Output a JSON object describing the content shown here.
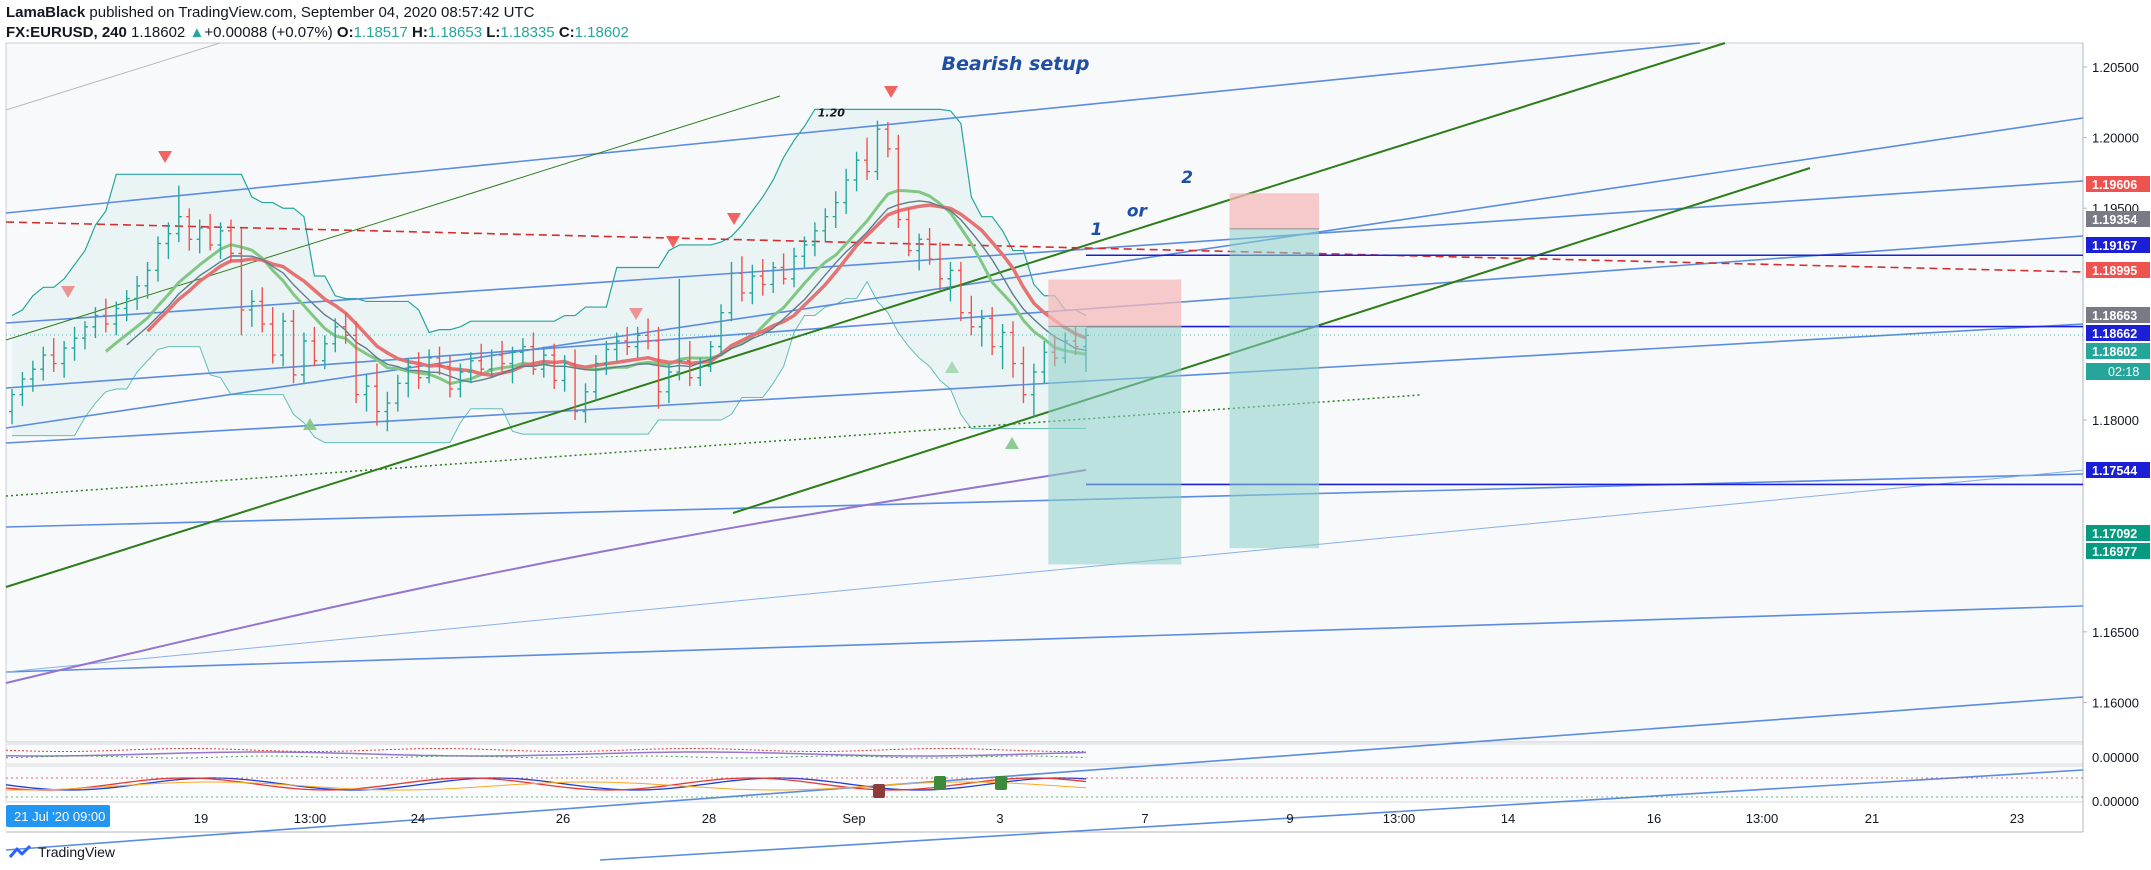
{
  "header": {
    "author": "LamaBlack",
    "published_text": "published on TradingView.com, September 04, 2020 08:57:42 UTC",
    "symbol": "FX:EURUSD, 240",
    "last": "1.18602",
    "change_arrow": "▲",
    "change": "+0.00088 (+0.07%)",
    "o_label": "O:",
    "o": "1.18517",
    "h_label": "H:",
    "h": "1.18653",
    "l_label": "L:",
    "l": "1.18335",
    "c_label": "C:",
    "c": "1.18602"
  },
  "footer": {
    "brand": "TradingView",
    "brand_icon": "tradingview-logo-icon"
  },
  "colors": {
    "up": "#26a69a",
    "down": "#ef5350",
    "channel": "#5b8ce0",
    "trend": "#2e7d1b",
    "level": "#1b1fd6",
    "resistance": "#d32f2f",
    "support": "#2e7d1b",
    "ma_fast": "#e57373",
    "ma_slow": "#81c784",
    "ma_long": "#9575cd",
    "annotation": "#1e4fa0",
    "target": "#8ccfc9",
    "stop": "#f6b9b9"
  },
  "chart_data": {
    "type": "candlestick",
    "title": "",
    "annotations": [
      {
        "text": "Bearish setup",
        "x": "Sep 2 12:00",
        "y": 1.2048
      },
      {
        "text": "1",
        "x": "Sep 5 12:00",
        "y": 1.1931
      },
      {
        "text": "or",
        "x": "Sep 6 12:00",
        "y": 1.1944
      },
      {
        "text": "2",
        "x": "Sep 7 12:00",
        "y": 1.1968
      },
      {
        "text": "1.20",
        "x": "Aug 31 00:00",
        "y": 1.2015
      }
    ],
    "price_axis": {
      "min": 1.1572,
      "max": 1.2067,
      "scale": "linear",
      "position": "right",
      "ticks": [
        {
          "value": 1.205,
          "label": "1.20500"
        },
        {
          "value": 1.2,
          "label": "1.20000"
        },
        {
          "value": 1.195,
          "label": "1.19500"
        },
        {
          "value": 1.18,
          "label": "1.18000"
        },
        {
          "value": 1.165,
          "label": "1.16500"
        },
        {
          "value": 1.16,
          "label": "1.16000"
        }
      ]
    },
    "price_labels": [
      {
        "value": 1.19606,
        "label": "1.19606",
        "kind": "stop"
      },
      {
        "value": 1.19354,
        "label": "1.19354",
        "kind": "entry"
      },
      {
        "value": 1.19167,
        "label": "1.19167",
        "kind": "level"
      },
      {
        "value": 1.18995,
        "label": "1.18995",
        "kind": "resistance"
      },
      {
        "value": 1.18663,
        "label": "1.18663",
        "kind": "entry"
      },
      {
        "value": 1.18662,
        "label": "1.18662",
        "kind": "level"
      },
      {
        "value": 1.18602,
        "label": "1.18602",
        "kind": "last"
      },
      {
        "value": 1.17544,
        "label": "1.17544",
        "kind": "level"
      },
      {
        "value": 1.17092,
        "label": "1.17092",
        "kind": "target"
      },
      {
        "value": 1.16977,
        "label": "1.16977",
        "kind": "target"
      }
    ],
    "countdown": "02:18",
    "time_axis": {
      "start_label": "21 Jul '20  09:00",
      "ticks": [
        {
          "value": "Jul 19 00:00",
          "label": "19"
        },
        {
          "value": "Jul 22 13:00",
          "label": "13:00"
        },
        {
          "value": "Aug 24 00:00",
          "label": "24"
        },
        {
          "value": "Aug 26 00:00",
          "label": "26"
        },
        {
          "value": "Aug 28 00:00",
          "label": "28"
        },
        {
          "value": "Sep 1 00:00",
          "label": "Sep"
        },
        {
          "value": "Sep 3 00:00",
          "label": "3"
        },
        {
          "value": "Sep 7 00:00",
          "label": "7"
        },
        {
          "value": "Sep 9 00:00",
          "label": "9"
        },
        {
          "value": "Sep 11 13:00",
          "label": "13:00"
        },
        {
          "value": "Sep 14 00:00",
          "label": "14"
        },
        {
          "value": "Sep 16 00:00",
          "label": "16"
        },
        {
          "value": "Sep 18 13:00",
          "label": "13:00"
        },
        {
          "value": "Sep 21 00:00",
          "label": "21"
        },
        {
          "value": "Sep 23 00:00",
          "label": "23"
        }
      ]
    },
    "candles": [
      [
        1.1806,
        1.1822,
        1.1797,
        1.1818
      ],
      [
        1.1818,
        1.1834,
        1.181,
        1.1829
      ],
      [
        1.1829,
        1.1842,
        1.182,
        1.1836
      ],
      [
        1.1836,
        1.1852,
        1.1828,
        1.1846
      ],
      [
        1.1846,
        1.1858,
        1.1834,
        1.184
      ],
      [
        1.184,
        1.1856,
        1.183,
        1.1851
      ],
      [
        1.1851,
        1.1866,
        1.1842,
        1.1858
      ],
      [
        1.1858,
        1.187,
        1.185,
        1.1866
      ],
      [
        1.1866,
        1.188,
        1.1858,
        1.1874
      ],
      [
        1.1874,
        1.1886,
        1.1862,
        1.1868
      ],
      [
        1.1868,
        1.1884,
        1.186,
        1.1879
      ],
      [
        1.1879,
        1.1892,
        1.187,
        1.1886
      ],
      [
        1.1886,
        1.1902,
        1.1878,
        1.1895
      ],
      [
        1.1895,
        1.1912,
        1.1886,
        1.1906
      ],
      [
        1.1906,
        1.193,
        1.1898,
        1.1925
      ],
      [
        1.1925,
        1.194,
        1.1914,
        1.1932
      ],
      [
        1.1932,
        1.1966,
        1.1926,
        1.1944
      ],
      [
        1.1944,
        1.195,
        1.192,
        1.1928
      ],
      [
        1.1928,
        1.1942,
        1.1918,
        1.1936
      ],
      [
        1.1936,
        1.1946,
        1.192,
        1.1924
      ],
      [
        1.1924,
        1.194,
        1.1914,
        1.1934
      ],
      [
        1.1934,
        1.1942,
        1.1912,
        1.1918
      ],
      [
        1.1918,
        1.1936,
        1.186,
        1.1878
      ],
      [
        1.1878,
        1.1892,
        1.1866,
        1.1884
      ],
      [
        1.1884,
        1.1894,
        1.1862,
        1.1868
      ],
      [
        1.1868,
        1.188,
        1.184,
        1.1846
      ],
      [
        1.1846,
        1.1876,
        1.1838,
        1.187
      ],
      [
        1.187,
        1.1878,
        1.1826,
        1.1832
      ],
      [
        1.1832,
        1.1862,
        1.1826,
        1.1856
      ],
      [
        1.1856,
        1.1866,
        1.1838,
        1.1842
      ],
      [
        1.1842,
        1.186,
        1.1836,
        1.1854
      ],
      [
        1.1854,
        1.1872,
        1.1848,
        1.1866
      ],
      [
        1.1866,
        1.1876,
        1.1854,
        1.186
      ],
      [
        1.186,
        1.187,
        1.1812,
        1.1818
      ],
      [
        1.1818,
        1.1832,
        1.1806,
        1.1824
      ],
      [
        1.1824,
        1.184,
        1.1796,
        1.1806
      ],
      [
        1.1806,
        1.182,
        1.1792,
        1.1812
      ],
      [
        1.1812,
        1.1832,
        1.1806,
        1.1826
      ],
      [
        1.1826,
        1.1844,
        1.1816,
        1.1838
      ],
      [
        1.1838,
        1.1848,
        1.1822,
        1.183
      ],
      [
        1.183,
        1.185,
        1.1826,
        1.1844
      ],
      [
        1.1844,
        1.1852,
        1.1832,
        1.1838
      ],
      [
        1.1838,
        1.1846,
        1.1816,
        1.1822
      ],
      [
        1.1822,
        1.184,
        1.1816,
        1.1834
      ],
      [
        1.1834,
        1.1848,
        1.1826,
        1.1842
      ],
      [
        1.1842,
        1.1854,
        1.1832,
        1.1836
      ],
      [
        1.1836,
        1.185,
        1.183,
        1.1846
      ],
      [
        1.1846,
        1.1856,
        1.1834,
        1.184
      ],
      [
        1.184,
        1.1852,
        1.1826,
        1.1848
      ],
      [
        1.1848,
        1.1858,
        1.184,
        1.1852
      ],
      [
        1.1852,
        1.1862,
        1.1832,
        1.1836
      ],
      [
        1.1836,
        1.1852,
        1.183,
        1.1846
      ],
      [
        1.1846,
        1.1854,
        1.1822,
        1.1828
      ],
      [
        1.1828,
        1.1846,
        1.182,
        1.184
      ],
      [
        1.184,
        1.185,
        1.18,
        1.1806
      ],
      [
        1.1806,
        1.1826,
        1.1798,
        1.182
      ],
      [
        1.182,
        1.1846,
        1.1814,
        1.184
      ],
      [
        1.184,
        1.1856,
        1.1832,
        1.185
      ],
      [
        1.185,
        1.1862,
        1.1842,
        1.1856
      ],
      [
        1.1856,
        1.1866,
        1.1846,
        1.1852
      ],
      [
        1.1852,
        1.1866,
        1.1844,
        1.186
      ],
      [
        1.186,
        1.1872,
        1.185,
        1.1856
      ],
      [
        1.1856,
        1.1866,
        1.1808,
        1.182
      ],
      [
        1.182,
        1.184,
        1.1812,
        1.1834
      ],
      [
        1.1834,
        1.19,
        1.1828,
        1.1842
      ],
      [
        1.1842,
        1.1856,
        1.1824,
        1.183
      ],
      [
        1.183,
        1.1844,
        1.1824,
        1.1838
      ],
      [
        1.1838,
        1.1856,
        1.1834,
        1.1852
      ],
      [
        1.1852,
        1.1882,
        1.1846,
        1.1876
      ],
      [
        1.1876,
        1.1912,
        1.187,
        1.1904
      ],
      [
        1.1904,
        1.1916,
        1.1884,
        1.189
      ],
      [
        1.189,
        1.191,
        1.1882,
        1.1902
      ],
      [
        1.1902,
        1.1914,
        1.1888,
        1.1896
      ],
      [
        1.1896,
        1.1912,
        1.189,
        1.1908
      ],
      [
        1.1908,
        1.1918,
        1.1896,
        1.19
      ],
      [
        1.19,
        1.1922,
        1.1894,
        1.1916
      ],
      [
        1.1916,
        1.193,
        1.1908,
        1.1924
      ],
      [
        1.1924,
        1.194,
        1.1916,
        1.1934
      ],
      [
        1.1934,
        1.195,
        1.1926,
        1.1944
      ],
      [
        1.1944,
        1.1962,
        1.1936,
        1.1954
      ],
      [
        1.1954,
        1.1978,
        1.1946,
        1.197
      ],
      [
        1.197,
        1.199,
        1.1962,
        1.1984
      ],
      [
        1.1984,
        1.2,
        1.197,
        1.1976
      ],
      [
        1.1976,
        1.2012,
        1.197,
        1.2006
      ],
      [
        1.2006,
        1.2011,
        1.1986,
        1.1992
      ],
      [
        1.1992,
        1.2002,
        1.1936,
        1.1942
      ],
      [
        1.1942,
        1.195,
        1.1916,
        1.192
      ],
      [
        1.192,
        1.1932,
        1.1906,
        1.1928
      ],
      [
        1.1928,
        1.1936,
        1.191,
        1.1914
      ],
      [
        1.1914,
        1.1926,
        1.1892,
        1.19
      ],
      [
        1.19,
        1.1912,
        1.1884,
        1.1906
      ],
      [
        1.1906,
        1.1912,
        1.187,
        1.1876
      ],
      [
        1.1876,
        1.1888,
        1.186,
        1.1866
      ],
      [
        1.1866,
        1.1878,
        1.1852,
        1.1872
      ],
      [
        1.1872,
        1.188,
        1.1846,
        1.1852
      ],
      [
        1.1852,
        1.1868,
        1.1836,
        1.1862
      ],
      [
        1.1862,
        1.187,
        1.183,
        1.184
      ],
      [
        1.184,
        1.1852,
        1.1812,
        1.1818
      ],
      [
        1.1818,
        1.184,
        1.1802,
        1.1834
      ],
      [
        1.1834,
        1.1856,
        1.1826,
        1.1848
      ],
      [
        1.1848,
        1.186,
        1.1838,
        1.1844
      ],
      [
        1.1844,
        1.1862,
        1.184,
        1.1856
      ],
      [
        1.1856,
        1.1866,
        1.1846,
        1.1852
      ],
      [
        1.1852,
        1.1865,
        1.1834,
        1.186
      ]
    ],
    "levels": [
      {
        "name": "resistance-1.1917",
        "value": 1.19167,
        "style": "solid"
      },
      {
        "name": "level-1.1866",
        "value": 1.18662,
        "style": "solid"
      },
      {
        "name": "support-1.1754",
        "value": 1.17544,
        "style": "solid"
      }
    ],
    "positions": [
      {
        "name": "short-position-1",
        "entry": 1.18663,
        "stop": 1.18995,
        "target": 1.16977,
        "from": "Sep 4 08:00",
        "to": "Sep 7 12:00"
      },
      {
        "name": "short-position-2",
        "entry": 1.19354,
        "stop": 1.19606,
        "target": 1.17092,
        "from": "Sep 8 04:00",
        "to": "Sep 9 16:00"
      }
    ]
  }
}
